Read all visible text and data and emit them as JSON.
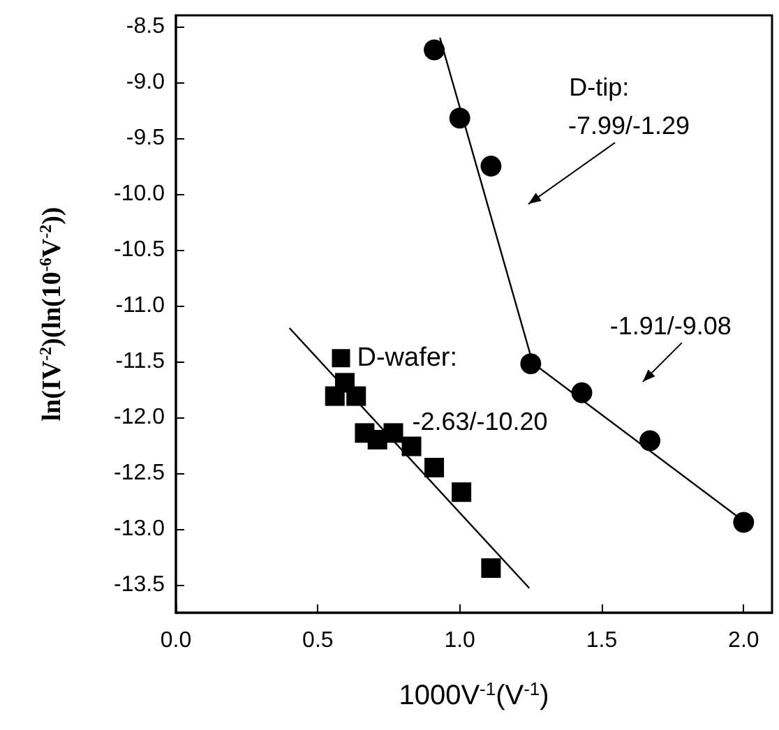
{
  "chart_data": {
    "type": "scatter",
    "xlabel": "1000V$^{-1}$(V$^{-1}$)",
    "ylabel": "ln(IV$^{-2}$)(ln(10$^{-6}$V$^{-2}$))",
    "xlim": [
      0,
      2.1
    ],
    "xticks": [
      {
        "value": 0,
        "label": "0.0"
      },
      0.5,
      {
        "value": 1,
        "label": "1.0"
      },
      1.5,
      {
        "value": 2,
        "label": "2.0"
      }
    ],
    "ylim": [
      -13.75,
      -8.4
    ],
    "yticks": [
      -8.5,
      {
        "value": -9,
        "label": "-9.0"
      },
      -9.5,
      {
        "value": -10,
        "label": "-10.0"
      },
      -10.5,
      {
        "value": -11,
        "label": "-11.0"
      },
      -11.5,
      {
        "value": -12,
        "label": "-12.0"
      },
      -12.5,
      {
        "value": -13,
        "label": "-13.0"
      },
      -13.5
    ],
    "grid": false,
    "legend": "center left",
    "series": [
      {
        "color": "#000000",
        "marker": "circle",
        "x": [
          0.91,
          1.0,
          1.11,
          1.25,
          1.43,
          1.67,
          2.0
        ],
        "values": [
          -8.71,
          -9.32,
          -9.75,
          -11.52,
          -11.78,
          -12.21,
          -12.94
        ]
      },
      {
        "name": "D-wafer:",
        "color": "#000000",
        "marker": "square",
        "x": [
          0.56,
          0.595,
          0.635,
          0.665,
          0.71,
          0.766,
          0.83,
          0.91,
          1.006,
          1.11
        ],
        "values": [
          -11.81,
          -11.69,
          -11.81,
          -12.14,
          -12.2,
          -12.14,
          -12.26,
          -12.45,
          -12.67,
          -13.35
        ]
      },
      {
        "type": "line",
        "color": "#000000",
        "marker": "none",
        "line_style": "solid",
        "x": [
          0.93,
          1.25
        ],
        "values": [
          -8.6,
          -11.45
        ]
      },
      {
        "type": "line",
        "color": "#000000",
        "marker": "none",
        "line_style": "solid",
        "x": [
          1.25,
          2.0
        ],
        "values": [
          -11.5,
          -12.93
        ]
      },
      {
        "type": "line",
        "color": "#000000",
        "marker": "none",
        "line_style": "solid",
        "x": [
          0.4,
          1.245
        ],
        "values": [
          -11.2,
          -13.53
        ]
      }
    ],
    "annotations": [
      "D-tip:",
      "-7.99/-1.29",
      "-1.91/-9.08",
      "-2.63/-10.20"
    ]
  }
}
